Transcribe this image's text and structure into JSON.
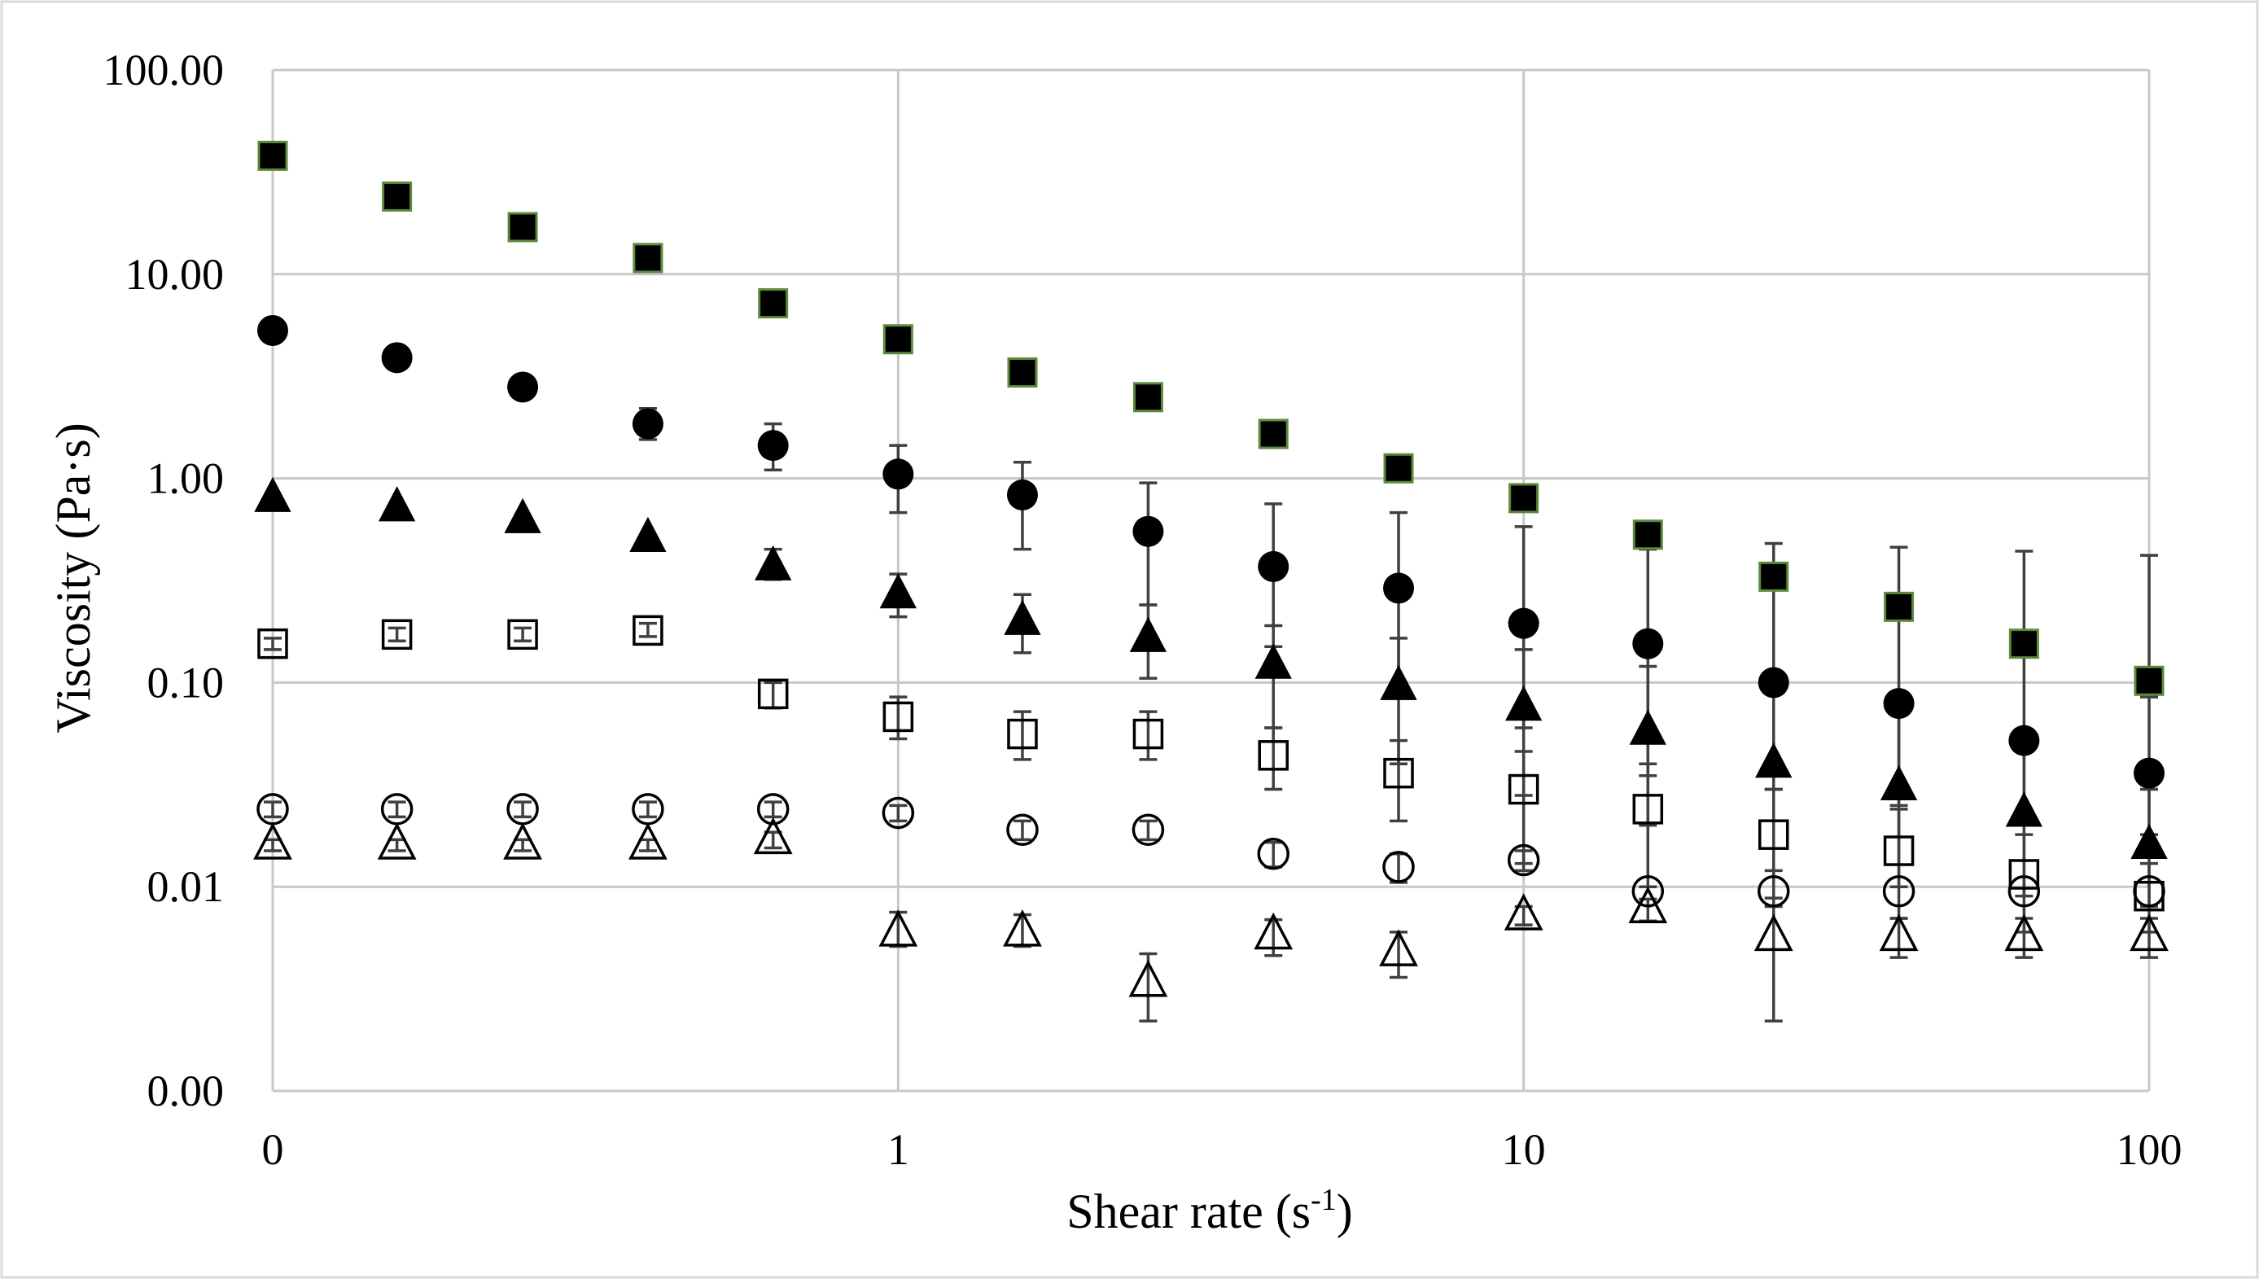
{
  "chart_data": {
    "type": "scatter",
    "title": "",
    "xlabel": "Shear rate (s",
    "xlabel_sup": "-1",
    "xlabel_end": ")",
    "ylabel": "Viscosity (Pa·s)",
    "x_scale": "log",
    "y_scale": "log",
    "xlim": [
      0.1,
      100
    ],
    "ylim": [
      0.001,
      100
    ],
    "x_ticks": [
      0.1,
      1,
      10,
      100
    ],
    "x_tick_labels": [
      "0",
      "1",
      "10",
      "100"
    ],
    "y_ticks": [
      0.001,
      0.01,
      0.1,
      1,
      10,
      100
    ],
    "y_tick_labels": [
      "0.00",
      "0.01",
      "0.10",
      "1.00",
      "10.00",
      "100.00"
    ],
    "grid": true,
    "legend": "none",
    "x": [
      0.1,
      0.158,
      0.251,
      0.398,
      0.631,
      1,
      1.58,
      2.51,
      3.98,
      6.31,
      10,
      15.8,
      25.1,
      39.8,
      63.1,
      100
    ],
    "series": [
      {
        "marker": "filled-square",
        "color": "#000000",
        "edge": "#5a8a3a",
        "values": [
          38,
          24,
          17,
          12,
          7.2,
          4.8,
          3.3,
          2.5,
          1.65,
          1.12,
          0.8,
          0.53,
          0.33,
          0.235,
          0.155,
          0.102
        ],
        "err_upper": [
          null,
          null,
          null,
          null,
          null,
          null,
          null,
          null,
          null,
          null,
          null,
          null,
          0.48,
          0.46,
          0.44,
          0.42
        ]
      },
      {
        "marker": "filled-circle",
        "color": "#000000",
        "values": [
          5.3,
          3.9,
          2.8,
          1.85,
          1.45,
          1.05,
          0.83,
          0.55,
          0.37,
          0.29,
          0.195,
          0.155,
          0.1,
          0.079,
          0.052,
          0.036
        ],
        "err_low": [
          null,
          null,
          null,
          1.55,
          1.1,
          0.68,
          0.45,
          0.24,
          0.15,
          0.1,
          0.06,
          0.035,
          0.03,
          0.025,
          0.02,
          0.018
        ],
        "err_high": [
          null,
          null,
          null,
          2.2,
          1.85,
          1.45,
          1.2,
          0.95,
          0.75,
          0.68,
          0.58,
          0.45,
          0.3,
          0.22,
          0.14,
          0.085
        ]
      },
      {
        "marker": "filled-triangle",
        "color": "#000000",
        "values": [
          0.8,
          0.72,
          0.63,
          0.51,
          0.37,
          0.27,
          0.2,
          0.165,
          0.122,
          0.096,
          0.076,
          0.058,
          0.04,
          0.031,
          0.023,
          0.016
        ],
        "err_low": [
          null,
          null,
          null,
          null,
          0.32,
          0.21,
          0.14,
          0.105,
          0.06,
          0.04,
          0.028,
          0.02,
          0.012,
          0.01,
          0.009,
          0.008
        ],
        "err_high": [
          null,
          null,
          null,
          null,
          0.45,
          0.34,
          0.27,
          0.24,
          0.19,
          0.165,
          0.145,
          0.12,
          0.09,
          0.07,
          0.05,
          0.03
        ]
      },
      {
        "marker": "open-square",
        "color": "#000000",
        "values": [
          0.155,
          0.172,
          0.172,
          0.18,
          0.088,
          0.068,
          0.056,
          0.056,
          0.044,
          0.036,
          0.03,
          0.024,
          0.018,
          0.015,
          0.0115,
          0.009
        ],
        "err_low": [
          0.145,
          0.16,
          0.16,
          0.168,
          0.075,
          0.053,
          0.042,
          0.042,
          0.03,
          0.021,
          0.013,
          0.01,
          0.008,
          0.007,
          0.006,
          0.006
        ],
        "err_high": [
          0.165,
          0.185,
          0.185,
          0.195,
          0.1,
          0.085,
          0.072,
          0.072,
          0.06,
          0.052,
          0.046,
          0.04,
          0.03,
          0.024,
          0.018,
          0.013
        ]
      },
      {
        "marker": "open-circle",
        "color": "#000000",
        "values": [
          0.024,
          0.024,
          0.024,
          0.024,
          0.024,
          0.023,
          0.019,
          0.019,
          0.0145,
          0.0125,
          0.0135,
          0.0095,
          0.0095,
          0.0095,
          0.0095,
          0.0095
        ],
        "err_low": [
          0.022,
          0.022,
          0.022,
          0.022,
          0.022,
          0.021,
          0.017,
          0.017,
          0.0125,
          0.0105,
          0.012,
          null,
          null,
          null,
          null,
          null
        ],
        "err_high": [
          0.026,
          0.026,
          0.026,
          0.026,
          0.026,
          0.025,
          0.021,
          0.021,
          0.0165,
          0.0145,
          0.015,
          null,
          null,
          null,
          null,
          null
        ]
      },
      {
        "marker": "open-triangle",
        "color": "#000000",
        "values": [
          0.016,
          0.016,
          0.016,
          0.016,
          0.017,
          0.006,
          0.006,
          0.0034,
          0.0058,
          0.0048,
          0.0072,
          0.0078,
          0.0057,
          0.0057,
          0.0057,
          0.0057
        ],
        "err_low": [
          0.015,
          0.015,
          0.015,
          0.015,
          0.0155,
          0.0051,
          0.0051,
          0.0022,
          0.0046,
          0.0036,
          0.0065,
          0.0068,
          0.0022,
          0.0045,
          0.0045,
          0.0045
        ],
        "err_high": [
          0.017,
          0.017,
          0.017,
          0.017,
          0.0185,
          0.0075,
          0.0073,
          0.0047,
          0.0069,
          0.006,
          0.008,
          0.0087,
          0.0088,
          0.007,
          0.007,
          0.007
        ]
      }
    ]
  }
}
